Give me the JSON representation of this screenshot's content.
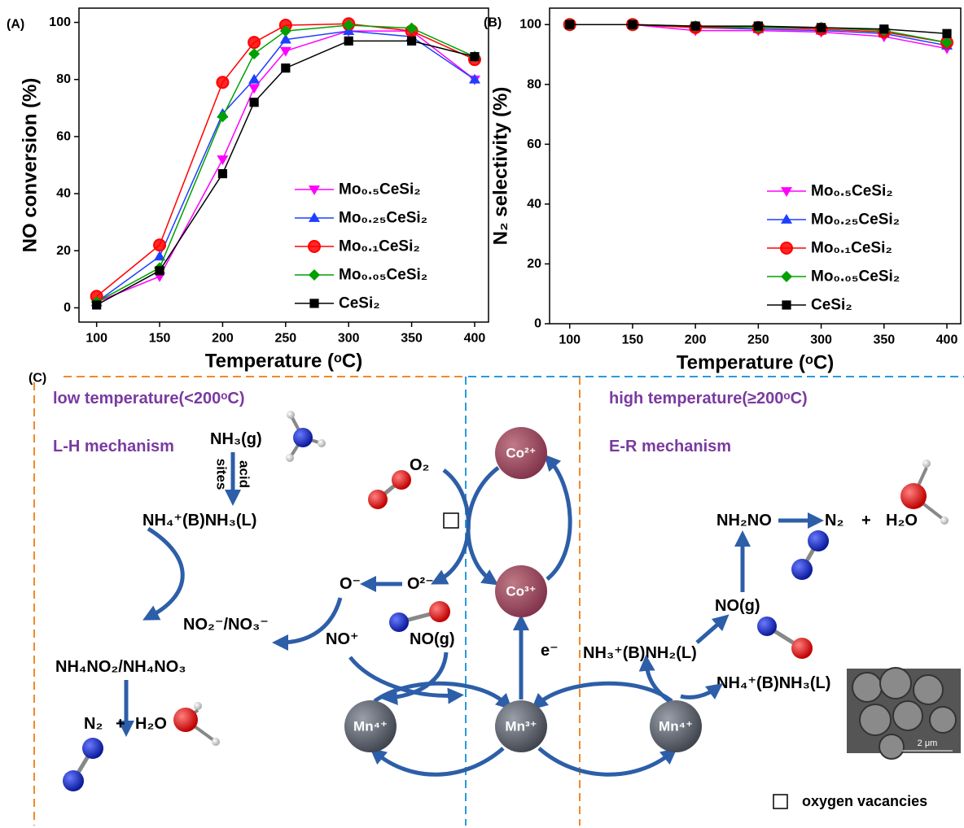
{
  "chart_data": [
    {
      "type": "line",
      "panel_label": "(A)",
      "xlabel": "Temperature (ᵒC)",
      "ylabel": "NO conversion (%)",
      "x": [
        100,
        150,
        200,
        225,
        250,
        300,
        350,
        400
      ],
      "xlim": [
        86,
        411
      ],
      "xticks": [
        100,
        150,
        200,
        250,
        300,
        350,
        400
      ],
      "ylim": [
        -5,
        105
      ],
      "yticks": [
        0,
        20,
        40,
        60,
        80,
        100
      ],
      "legend": "lower right",
      "series": [
        {
          "name": "Mo₀.₅CeSi₂",
          "color": "#ff00ff",
          "marker": "triangle-down",
          "values": [
            2,
            11,
            52,
            77,
            90,
            97,
            97,
            80
          ]
        },
        {
          "name": "Mo₀.₂₅CeSi₂",
          "color": "#1f3fff",
          "marker": "triangle-up",
          "values": [
            2,
            18,
            68,
            80,
            94,
            97,
            95,
            80
          ]
        },
        {
          "name": "Mo₀.₁CeSi₂",
          "color": "#ff0000",
          "marker": "circle",
          "values": [
            4,
            22,
            79,
            93,
            99,
            99.5,
            97,
            87
          ]
        },
        {
          "name": "Mo₀.₀₅CeSi₂",
          "color": "#00a000",
          "marker": "diamond",
          "values": [
            2,
            14,
            67,
            89,
            97,
            99,
            98,
            88
          ]
        },
        {
          "name": "CeSi₂",
          "color": "#000000",
          "marker": "square",
          "values": [
            1,
            13,
            47,
            72,
            84,
            93.5,
            93.5,
            88
          ]
        }
      ]
    },
    {
      "type": "line",
      "panel_label": "(B)",
      "xlabel": "Temperature (ᵒC)",
      "ylabel": "N₂ selectivity (%)",
      "x": [
        100,
        150,
        200,
        250,
        300,
        350,
        400
      ],
      "xlim": [
        84,
        411
      ],
      "xticks": [
        100,
        150,
        200,
        250,
        300,
        350,
        400
      ],
      "ylim": [
        0,
        105.5
      ],
      "yticks": [
        0,
        20,
        40,
        60,
        80,
        100
      ],
      "legend": "lower right",
      "series": [
        {
          "name": "Mo₀.₅CeSi₂",
          "color": "#ff00ff",
          "marker": "triangle-down",
          "values": [
            100,
            100,
            98,
            98,
            97.5,
            96,
            92
          ]
        },
        {
          "name": "Mo₀.₂₅CeSi₂",
          "color": "#1f3fff",
          "marker": "triangle-up",
          "values": [
            100,
            100,
            99,
            98.5,
            98,
            97,
            93
          ]
        },
        {
          "name": "Mo₀.₁CeSi₂",
          "color": "#ff0000",
          "marker": "circle",
          "values": [
            100,
            100,
            99,
            99,
            98.5,
            97.5,
            94
          ]
        },
        {
          "name": "Mo₀.₀₅CeSi₂",
          "color": "#00a000",
          "marker": "diamond",
          "values": [
            100,
            100,
            99.5,
            99,
            99,
            98,
            94
          ]
        },
        {
          "name": "CeSi₂",
          "color": "#000000",
          "marker": "square",
          "values": [
            100,
            100,
            99.5,
            99.5,
            99,
            98.5,
            97
          ]
        }
      ]
    }
  ],
  "diagram": {
    "panel_label": "(C)",
    "labels": [
      "low temperature(<200ᵒC)",
      "L-H mechanism",
      "NH₃(g)",
      "acid",
      "sites",
      "NH₄⁺(B)NH₃(L)",
      "NO₂⁻/NO₃⁻",
      "NH₄NO₂/NH₄NO₃",
      "N₂",
      "+",
      "H₂O",
      "O₂",
      "O⁻",
      "O²⁻",
      "NO⁺",
      "NO(g)",
      "e⁻",
      "Co²⁺",
      "Co³⁺",
      "Mn⁴⁺",
      "Mn³⁺",
      "Mn⁴⁺",
      "high temperature(≥200ᵒC)",
      "E-R mechanism",
      "NH₂NO",
      "N₂",
      "+",
      "H₂O",
      "NO(g)",
      "NH₃⁺(B)NH₂(L)",
      "NH₄⁺(B)NH₃(L)",
      "2 μm",
      "oxygen vacancies"
    ]
  }
}
